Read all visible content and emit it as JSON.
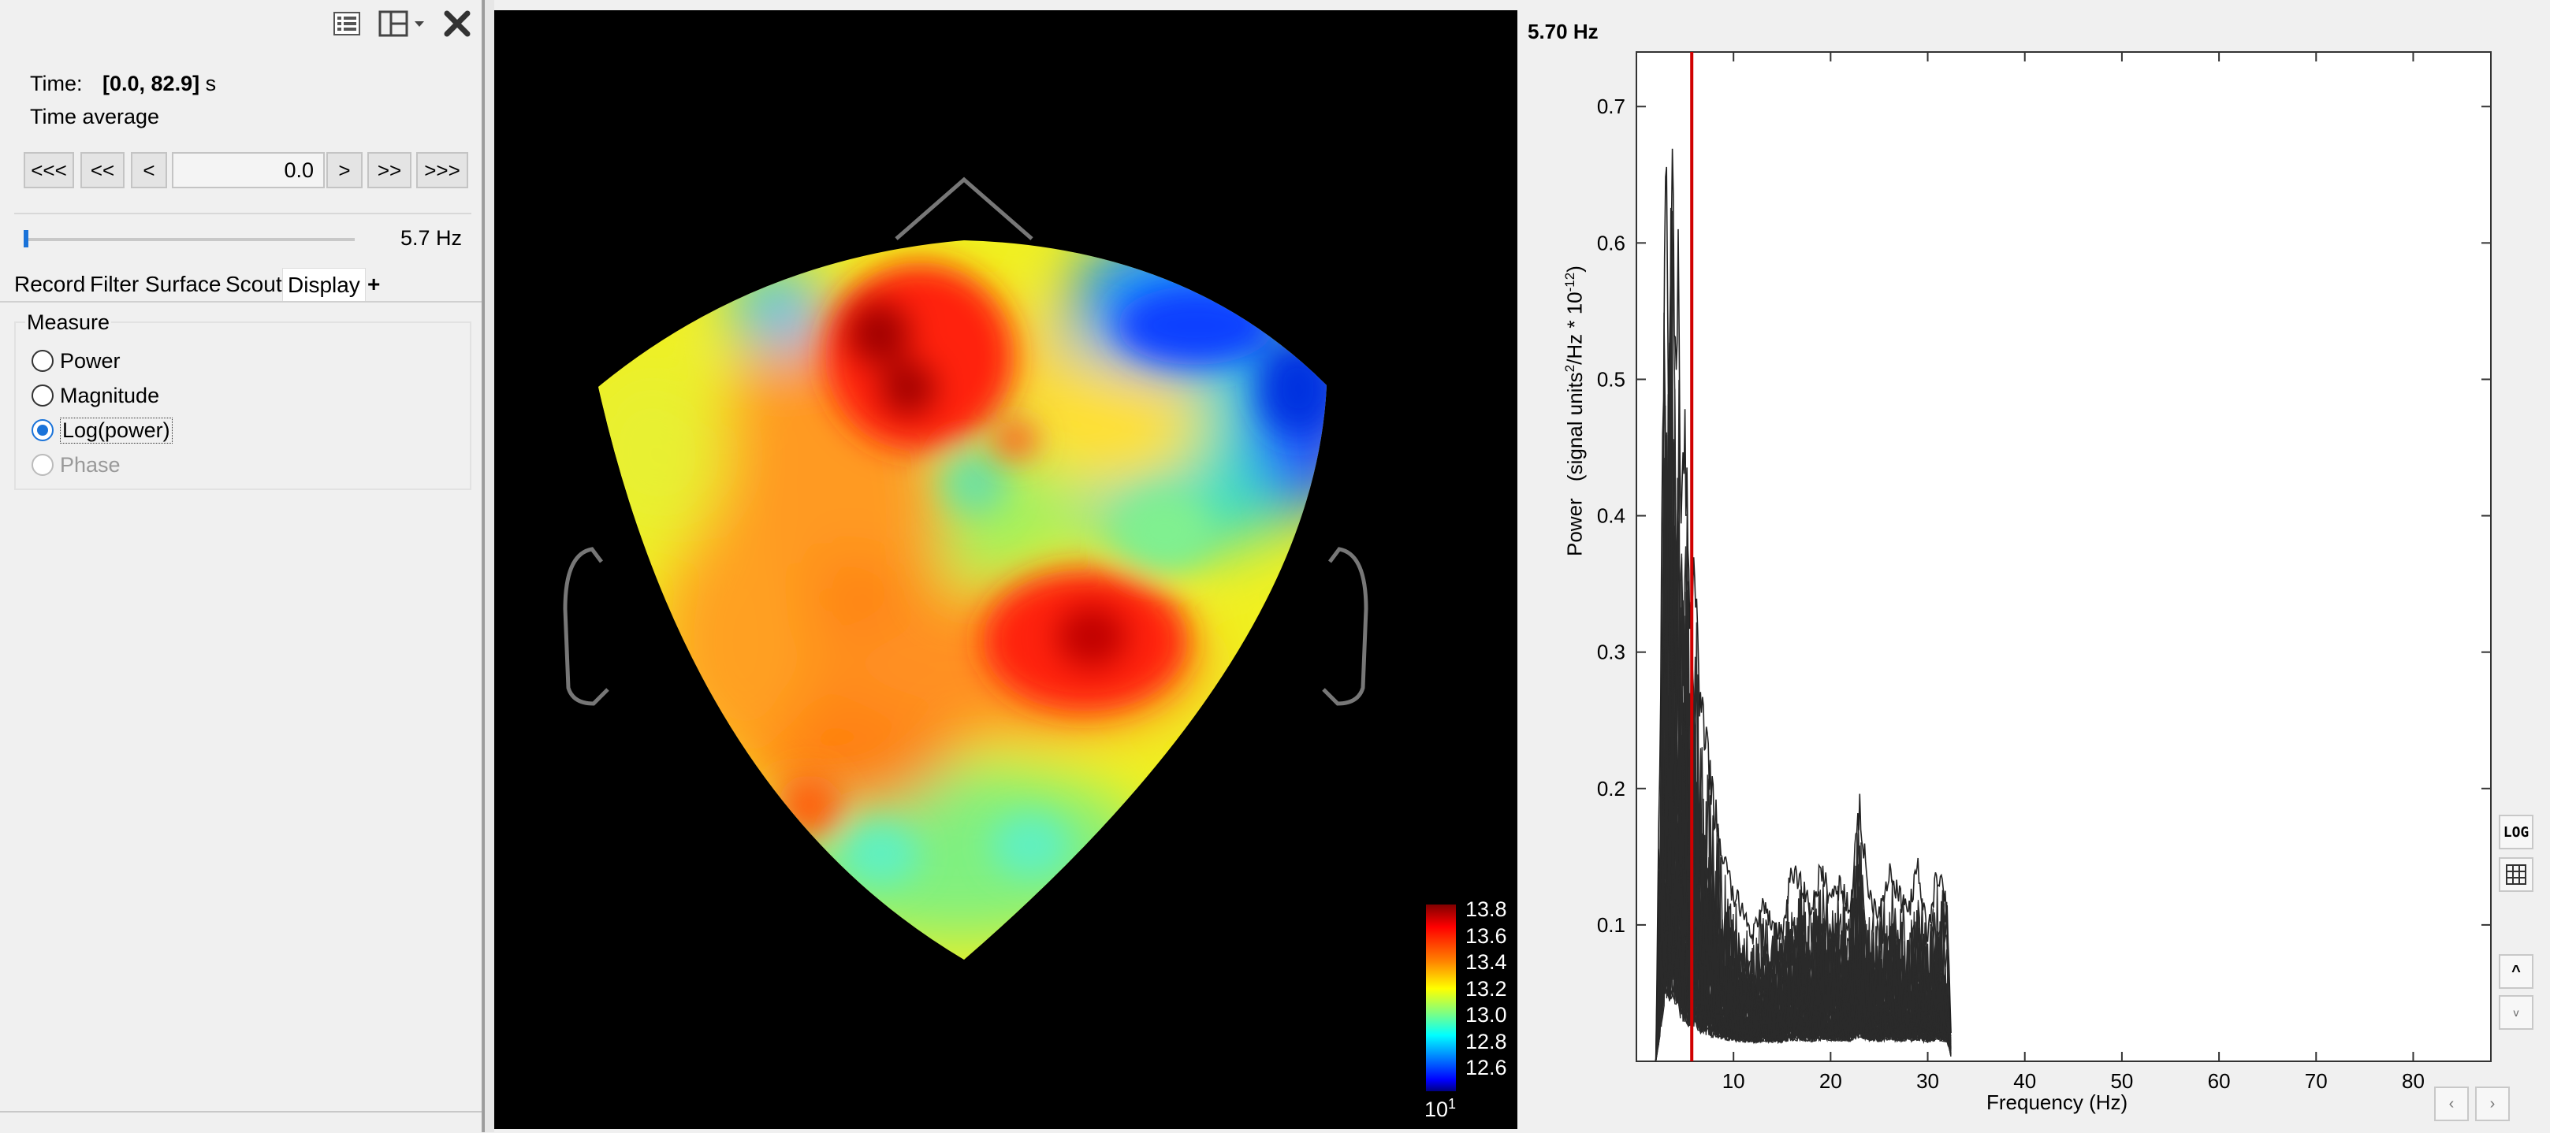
{
  "toolbar": {
    "icons": [
      "list-icon",
      "layout-icon",
      "close-icon"
    ]
  },
  "time": {
    "label": "Time:",
    "range": "[0.0, 82.9]",
    "unit": "s",
    "average_text": "Time average"
  },
  "navigation": {
    "buttons": [
      "<<<",
      "<<",
      "<",
      ">",
      ">>",
      ">>>"
    ],
    "value": "0.0"
  },
  "frequency_slider": {
    "value_label": "5.7 Hz",
    "fraction": 0.0
  },
  "tabs": {
    "items": [
      "Record",
      "Filter",
      "Surface",
      "Scout",
      "Display"
    ],
    "active": "Display",
    "add_label": "+"
  },
  "measure": {
    "title": "Measure",
    "options": [
      {
        "label": "Power",
        "checked": false,
        "enabled": true
      },
      {
        "label": "Magnitude",
        "checked": false,
        "enabled": true
      },
      {
        "label": "Log(power)",
        "checked": true,
        "enabled": true
      },
      {
        "label": "Phase",
        "checked": false,
        "enabled": false
      }
    ]
  },
  "topography": {
    "colorbar_ticks": [
      "13.8",
      "13.6",
      "13.4",
      "13.2",
      "13.0",
      "12.8",
      "12.6"
    ],
    "colorbar_exponent_base": "10",
    "colorbar_exponent": "1",
    "colormap": [
      "#800000",
      "#ff0000",
      "#ff8000",
      "#ffff00",
      "#80ff80",
      "#00ffff",
      "#0080ff",
      "#0000ff",
      "#000080"
    ]
  },
  "spectrum": {
    "cursor_label": "5.70 Hz",
    "cursor_color": "#d00000",
    "ylabel_power": "Power",
    "ylabel_units_a": "(signal units",
    "ylabel_units_sup": "2",
    "ylabel_units_b": "/Hz * 10",
    "ylabel_units_exp": "-12",
    "ylabel_units_c": ")",
    "xlabel": "Frequency (Hz)",
    "side_buttons": [
      "LOG",
      "grid-icon",
      "^",
      "v"
    ],
    "bottom_buttons": [
      "‹",
      "›"
    ]
  },
  "chart_data": {
    "type": "line",
    "xlabel": "Frequency (Hz)",
    "ylabel": "Power (signal units^2/Hz * 10^-12)",
    "xlim": [
      0,
      88
    ],
    "ylim": [
      0,
      0.74
    ],
    "x_ticks": [
      10,
      20,
      30,
      40,
      50,
      60,
      70,
      80
    ],
    "y_ticks": [
      0.1,
      0.2,
      0.3,
      0.4,
      0.5,
      0.6,
      0.7
    ],
    "cursor_x": 5.7,
    "grid": false,
    "series_count": "many overlaid channels",
    "envelope": {
      "x": [
        2,
        2.5,
        3,
        3.3,
        3.6,
        4,
        4.3,
        4.6,
        5,
        5.5,
        6,
        6.5,
        7,
        8,
        9,
        10,
        11,
        12,
        13,
        14,
        15,
        16,
        17,
        18,
        19,
        20,
        21,
        22,
        23,
        24,
        25,
        26,
        27,
        28,
        29,
        30,
        31,
        32,
        32.5
      ],
      "max": [
        0.0,
        0.3,
        0.72,
        0.55,
        0.7,
        0.58,
        0.62,
        0.45,
        0.5,
        0.34,
        0.4,
        0.28,
        0.26,
        0.2,
        0.16,
        0.13,
        0.12,
        0.1,
        0.12,
        0.11,
        0.1,
        0.15,
        0.14,
        0.12,
        0.15,
        0.13,
        0.14,
        0.12,
        0.2,
        0.13,
        0.12,
        0.15,
        0.13,
        0.12,
        0.15,
        0.1,
        0.15,
        0.12,
        0.0
      ],
      "min": [
        0.0,
        0.01,
        0.02,
        0.02,
        0.02,
        0.02,
        0.02,
        0.01,
        0.01,
        0.01,
        0.01,
        0.01,
        0.01,
        0.01,
        0.01,
        0.01,
        0.01,
        0.01,
        0.01,
        0.01,
        0.01,
        0.01,
        0.01,
        0.01,
        0.01,
        0.01,
        0.01,
        0.01,
        0.01,
        0.01,
        0.01,
        0.01,
        0.01,
        0.01,
        0.01,
        0.01,
        0.01,
        0.01,
        0.0
      ]
    }
  }
}
